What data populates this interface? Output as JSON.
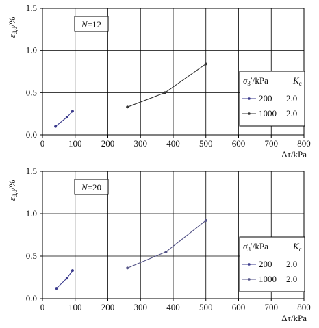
{
  "chart_data": [
    {
      "type": "line",
      "annotation": {
        "var": "N",
        "value": "12"
      },
      "xlabel": {
        "sym": "Δτ",
        "unit": "/kPa"
      },
      "ylabel": {
        "sym": "ε",
        "sub": "d,d",
        "unit": "/%"
      },
      "xlim": [
        0,
        800
      ],
      "ylim": [
        0,
        1.5
      ],
      "xticks": [
        0,
        100,
        200,
        300,
        400,
        500,
        600,
        700,
        800
      ],
      "yticks": [
        0.0,
        0.5,
        1.0,
        1.5
      ],
      "xtick_labels": [
        "0",
        "100",
        "200",
        "300",
        "400",
        "500",
        "600",
        "700",
        "800"
      ],
      "ytick_labels": [
        "0.0",
        "0.5",
        "1.0",
        "1.5"
      ],
      "grid": true,
      "legend": {
        "placement": "right",
        "header_sym": "σ",
        "header_sub": "3",
        "header_unit": "′/kPa",
        "header_k": "K",
        "header_k_sub": "c",
        "entries": [
          {
            "sigma": "200",
            "kc": "2.0",
            "series_index": 0
          },
          {
            "sigma": "1000",
            "kc": "2.0",
            "series_index": 1
          }
        ]
      },
      "series": [
        {
          "name": "200",
          "color": "#3a3a8c",
          "x": [
            40,
            75,
            92
          ],
          "y": [
            0.1,
            0.21,
            0.28
          ]
        },
        {
          "name": "1000",
          "color": "#333333",
          "x": [
            260,
            375,
            500
          ],
          "y": [
            0.33,
            0.5,
            0.84
          ]
        }
      ]
    },
    {
      "type": "line",
      "annotation": {
        "var": "N",
        "value": "20"
      },
      "xlabel": {
        "sym": "Δτ",
        "unit": "/kPa"
      },
      "ylabel": {
        "sym": "ε",
        "sub": "d,d",
        "unit": "/%"
      },
      "xlim": [
        0,
        800
      ],
      "ylim": [
        0,
        1.5
      ],
      "xticks": [
        0,
        100,
        200,
        300,
        400,
        500,
        600,
        700,
        800
      ],
      "yticks": [
        0.0,
        0.5,
        1.0,
        1.5
      ],
      "xtick_labels": [
        "0",
        "100",
        "200",
        "300",
        "400",
        "500",
        "600",
        "700",
        "800"
      ],
      "ytick_labels": [
        "0.0",
        "0.5",
        "1.0",
        "1.5"
      ],
      "grid": true,
      "legend": {
        "placement": "right",
        "header_sym": "σ",
        "header_sub": "3",
        "header_unit": "′/kPa",
        "header_k": "K",
        "header_k_sub": "c",
        "entries": [
          {
            "sigma": "200",
            "kc": "2.0",
            "series_index": 0
          },
          {
            "sigma": "1000",
            "kc": "2.0",
            "series_index": 1
          }
        ]
      },
      "series": [
        {
          "name": "200",
          "color": "#3a3a8c",
          "x": [
            43,
            75,
            92
          ],
          "y": [
            0.12,
            0.24,
            0.33
          ]
        },
        {
          "name": "1000",
          "color": "#555588",
          "x": [
            260,
            378,
            500
          ],
          "y": [
            0.36,
            0.55,
            0.92
          ]
        }
      ]
    }
  ]
}
